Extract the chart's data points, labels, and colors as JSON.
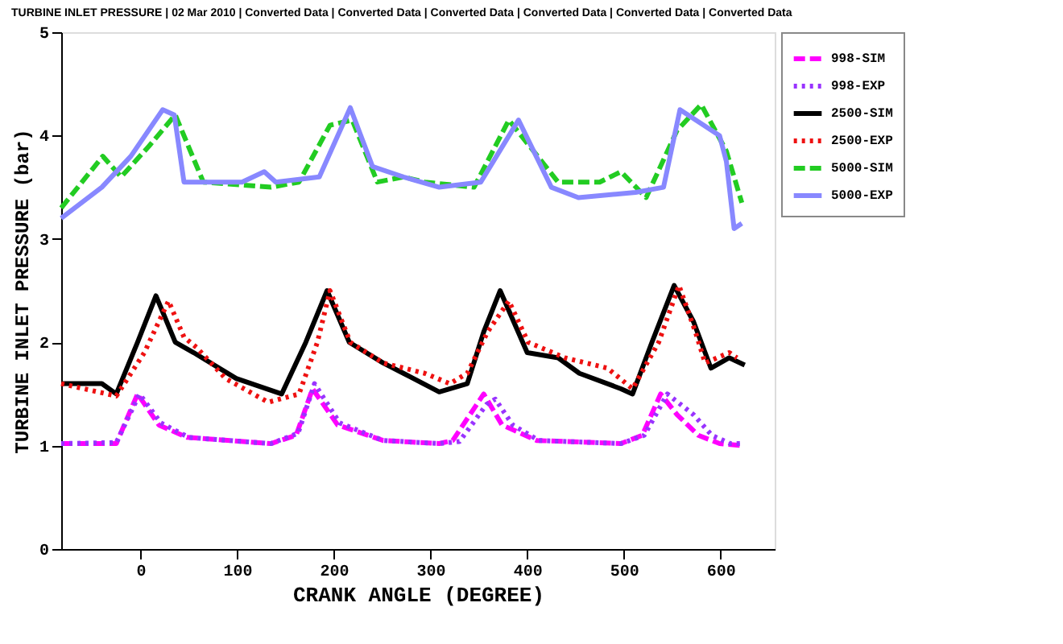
{
  "chart_data": {
    "type": "line",
    "title": "TURBINE INLET PRESSURE | 02 Mar 2010 | Converted Data | Converted Data | Converted Data | Converted Data | Converted Data | Converted Data",
    "xlabel": "CRANK ANGLE (DEGREE)",
    "ylabel": "TURBINE INLET PRESSURE (bar)",
    "xlim": [
      -82,
      656
    ],
    "xticks": [
      0,
      100,
      200,
      300,
      400,
      500,
      600
    ],
    "ylim": [
      0,
      5
    ],
    "yticks": [
      0,
      1,
      2,
      3,
      4,
      5
    ],
    "grid": false,
    "legend": "top right",
    "marker": "none",
    "series": [
      {
        "name": "998-SIM",
        "color": "#ff00ff",
        "line_style": "dashed",
        "x": [
          -82,
          -25,
          -3,
          19,
          48,
          135,
          161,
          178,
          204,
          251,
          309,
          323,
          355,
          374,
          410,
          497,
          519,
          538,
          555,
          577,
          599,
          623
        ],
        "values": [
          1.02,
          1.02,
          1.5,
          1.2,
          1.08,
          1.02,
          1.1,
          1.55,
          1.2,
          1.05,
          1.02,
          1.05,
          1.5,
          1.2,
          1.05,
          1.02,
          1.1,
          1.5,
          1.3,
          1.1,
          1.02,
          1.0
        ]
      },
      {
        "name": "998-EXP",
        "color": "#9933ff",
        "line_style": "dotted",
        "x": [
          -82,
          -25,
          -1,
          21,
          50,
          135,
          163,
          180,
          206,
          251,
          309,
          330,
          358,
          367,
          385,
          412,
          497,
          521,
          545,
          572,
          591,
          610,
          623
        ],
        "values": [
          1.02,
          1.03,
          1.5,
          1.22,
          1.08,
          1.02,
          1.12,
          1.6,
          1.22,
          1.05,
          1.02,
          1.04,
          1.4,
          1.45,
          1.2,
          1.05,
          1.02,
          1.1,
          1.5,
          1.3,
          1.1,
          1.02,
          1.02
        ]
      },
      {
        "name": "2500-SIM",
        "color": "#000000",
        "line_style": "solid",
        "x": [
          -82,
          -40,
          -25,
          -3,
          16,
          36,
          55,
          99,
          146,
          171,
          193,
          216,
          251,
          272,
          309,
          338,
          355,
          372,
          400,
          432,
          454,
          497,
          509,
          529,
          552,
          572,
          590,
          609,
          625
        ],
        "values": [
          1.6,
          1.6,
          1.5,
          2.0,
          2.45,
          2.0,
          1.9,
          1.65,
          1.5,
          2.0,
          2.5,
          2.0,
          1.8,
          1.7,
          1.52,
          1.6,
          2.1,
          2.5,
          1.9,
          1.85,
          1.7,
          1.55,
          1.5,
          2.0,
          2.55,
          2.2,
          1.75,
          1.85,
          1.78
        ]
      },
      {
        "name": "2500-EXP",
        "color": "#ee1111",
        "line_style": "dotted",
        "x": [
          -82,
          -25,
          4,
          29,
          45,
          58,
          88,
          132,
          164,
          183,
          196,
          217,
          251,
          294,
          320,
          338,
          359,
          381,
          401,
          439,
          483,
          509,
          536,
          557,
          574,
          584,
          609,
          617
        ],
        "values": [
          1.6,
          1.48,
          1.9,
          2.4,
          2.05,
          1.95,
          1.65,
          1.42,
          1.5,
          2.0,
          2.5,
          2.0,
          1.8,
          1.7,
          1.6,
          1.7,
          2.1,
          2.4,
          2.0,
          1.85,
          1.75,
          1.55,
          2.0,
          2.55,
          2.1,
          1.8,
          1.9,
          1.85
        ]
      },
      {
        "name": "5000-SIM",
        "color": "#22cc22",
        "line_style": "dashed",
        "x": [
          -82,
          -39,
          -20,
          9,
          36,
          65,
          135,
          164,
          196,
          219,
          245,
          272,
          294,
          345,
          381,
          432,
          475,
          497,
          523,
          555,
          580,
          606,
          622
        ],
        "values": [
          3.3,
          3.8,
          3.6,
          3.9,
          4.2,
          3.55,
          3.5,
          3.55,
          4.1,
          4.15,
          3.55,
          3.6,
          3.55,
          3.5,
          4.15,
          3.55,
          3.55,
          3.65,
          3.4,
          4.05,
          4.3,
          3.85,
          3.35
        ]
      },
      {
        "name": "5000-EXP",
        "color": "#8888ff",
        "line_style": "solid",
        "x": [
          -82,
          -40,
          -10,
          23,
          35,
          45,
          105,
          128,
          140,
          185,
          217,
          240,
          272,
          309,
          352,
          391,
          425,
          453,
          512,
          541,
          558,
          599,
          606,
          614,
          622
        ],
        "values": [
          3.2,
          3.5,
          3.8,
          4.25,
          4.2,
          3.55,
          3.55,
          3.65,
          3.55,
          3.6,
          4.27,
          3.7,
          3.6,
          3.5,
          3.55,
          4.15,
          3.5,
          3.4,
          3.45,
          3.5,
          4.25,
          4.0,
          3.75,
          3.1,
          3.15
        ]
      }
    ]
  }
}
